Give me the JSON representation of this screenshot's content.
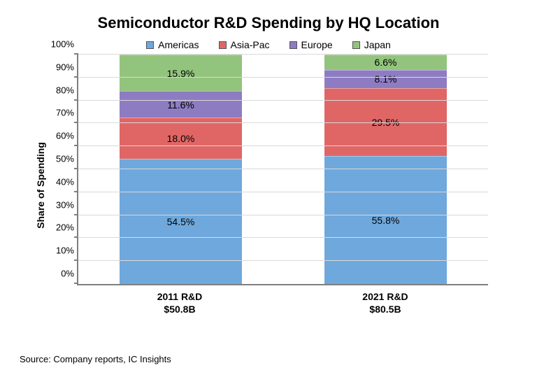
{
  "chart": {
    "type": "stacked-bar",
    "title": "Semiconductor R&D Spending by HQ Location",
    "title_fontsize": 22,
    "title_color": "#000000",
    "background_color": "#ffffff",
    "y_axis": {
      "title": "Share of Spending",
      "title_fontsize": 14,
      "min": 0,
      "max": 100,
      "tick_step": 10,
      "tick_suffix": "%",
      "tick_fontsize": 13,
      "axis_color": "#7f7f7f"
    },
    "grid": {
      "color": "#d9d9d9",
      "width": 1
    },
    "legend": {
      "fontsize": 14,
      "items": [
        {
          "label": "Americas",
          "color": "#6fa8dc"
        },
        {
          "label": "Asia-Pac",
          "color": "#e06666"
        },
        {
          "label": "Europe",
          "color": "#8e7cc3"
        },
        {
          "label": "Japan",
          "color": "#93c47d"
        }
      ]
    },
    "bar_width_pct": 30,
    "data_label_fontsize": 14,
    "x_labels_fontsize": 14,
    "categories": [
      {
        "label_line1": "2011 R&D",
        "label_line2": "$50.8B",
        "segments": [
          {
            "series": "Americas",
            "value": 54.5,
            "label": "54.5%",
            "color": "#6fa8dc"
          },
          {
            "series": "Asia-Pac",
            "value": 18.0,
            "label": "18.0%",
            "color": "#e06666"
          },
          {
            "series": "Europe",
            "value": 11.6,
            "label": "11.6%",
            "color": "#8e7cc3"
          },
          {
            "series": "Japan",
            "value": 15.9,
            "label": "15.9%",
            "color": "#93c47d"
          }
        ]
      },
      {
        "label_line1": "2021 R&D",
        "label_line2": "$80.5B",
        "segments": [
          {
            "series": "Americas",
            "value": 55.8,
            "label": "55.8%",
            "color": "#6fa8dc"
          },
          {
            "series": "Asia-Pac",
            "value": 29.5,
            "label": "29.5%",
            "color": "#e06666"
          },
          {
            "series": "Europe",
            "value": 8.1,
            "label": "8.1%",
            "color": "#8e7cc3"
          },
          {
            "series": "Japan",
            "value": 6.6,
            "label": "6.6%",
            "color": "#93c47d"
          }
        ]
      }
    ],
    "source_text": "Source: Company reports, IC Insights",
    "source_fontsize": 13,
    "source_color": "#000000"
  }
}
